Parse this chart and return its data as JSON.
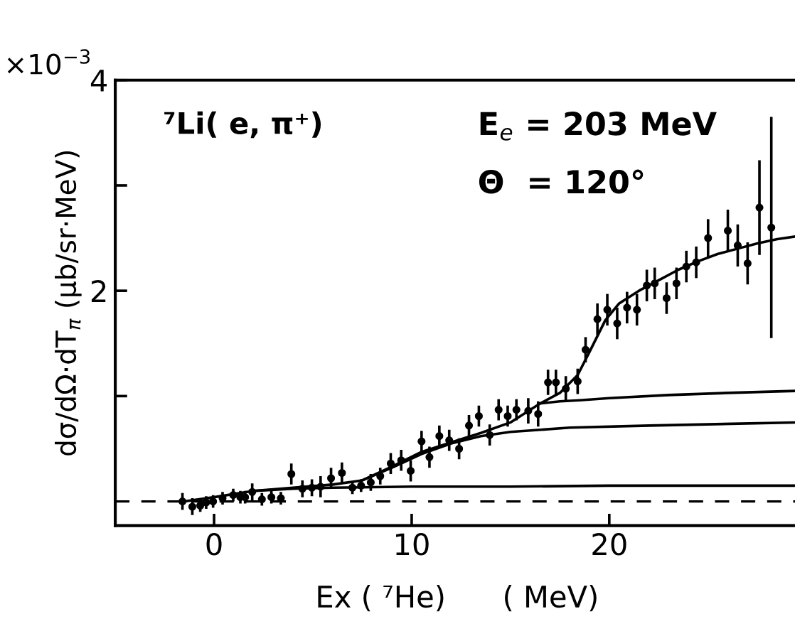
{
  "chart_data": {
    "type": "scatter",
    "xlabel": "Ex ( ⁷He)      ( MeV)",
    "ylabel": "dσ/dΩ·dT$_{π}$ (μb/sr·MeV)",
    "annotations": [
      "×10$^{−3}$",
      "⁷Li( e, π⁺)",
      "E$_{e}$ = 203 MeV",
      "Θ  = 120°"
    ],
    "xlim": [
      -5,
      29.6
    ],
    "ylim": [
      -0.23,
      4
    ],
    "xticks": [
      0,
      10,
      20
    ],
    "yticks": [
      {
        "value": 1,
        "label": null
      },
      {
        "value": 2,
        "label": "2"
      },
      {
        "value": 3,
        "label": null
      },
      {
        "value": 4,
        "label": "4"
      }
    ],
    "grid": false,
    "legend": false,
    "ref_lines": [
      {
        "axis": "y",
        "value": 0,
        "label": null,
        "color": "#000000",
        "line_style": "dashed"
      }
    ],
    "series": [
      {
        "color": "#000000",
        "marker": "circle",
        "x": [
          -1.6,
          -1.1,
          -0.7,
          -0.4,
          -0.05,
          0.43,
          0.97,
          1.33,
          1.57,
          1.93,
          2.42,
          2.9,
          3.38,
          3.91,
          4.47,
          4.95,
          5.39,
          5.92,
          6.47,
          7.0,
          7.44,
          7.93,
          8.41,
          8.94,
          9.47,
          9.95,
          10.5,
          10.9,
          11.4,
          11.9,
          12.4,
          12.9,
          13.4,
          13.95,
          14.4,
          14.86,
          15.3,
          15.9,
          16.4,
          16.9,
          17.3,
          17.8,
          18.4,
          18.8,
          19.4,
          19.9,
          20.4,
          20.9,
          21.4,
          21.9,
          22.3,
          22.9,
          23.4,
          23.9,
          24.4,
          25.0,
          26.0,
          26.5,
          27.0,
          27.6,
          28.2
        ],
        "values": [
          0.0,
          -0.05,
          -0.04,
          -0.01,
          0.0,
          0.03,
          0.06,
          0.04,
          0.04,
          0.09,
          0.02,
          0.04,
          0.03,
          0.26,
          0.12,
          0.13,
          0.14,
          0.22,
          0.27,
          0.13,
          0.15,
          0.18,
          0.24,
          0.36,
          0.39,
          0.29,
          0.57,
          0.42,
          0.62,
          0.58,
          0.5,
          0.72,
          0.81,
          0.63,
          0.87,
          0.81,
          0.87,
          0.86,
          0.83,
          1.13,
          1.13,
          1.07,
          1.14,
          1.44,
          1.73,
          1.82,
          1.69,
          1.84,
          1.82,
          2.05,
          2.07,
          1.93,
          2.07,
          2.23,
          2.27,
          2.5,
          2.57,
          2.43,
          2.26,
          2.79,
          2.6
        ],
        "errors": [
          0.08,
          0.08,
          0.06,
          0.06,
          0.06,
          0.06,
          0.06,
          0.06,
          0.06,
          0.08,
          0.06,
          0.06,
          0.06,
          0.1,
          0.08,
          0.08,
          0.1,
          0.1,
          0.1,
          0.06,
          0.06,
          0.08,
          0.08,
          0.1,
          0.1,
          0.1,
          0.1,
          0.1,
          0.1,
          0.1,
          0.1,
          0.1,
          0.1,
          0.1,
          0.1,
          0.1,
          0.1,
          0.12,
          0.12,
          0.12,
          0.12,
          0.12,
          0.12,
          0.12,
          0.15,
          0.15,
          0.15,
          0.15,
          0.15,
          0.15,
          0.15,
          0.15,
          0.15,
          0.15,
          0.15,
          0.18,
          0.2,
          0.2,
          0.2,
          0.45,
          1.05
        ]
      },
      {
        "type": "line",
        "color": "#000000",
        "line_style": "solid",
        "marker": "none",
        "x": [
          -1.5,
          0,
          2,
          4,
          6,
          7.5,
          9,
          10.5,
          12,
          13.5,
          15,
          16.5,
          17.5,
          18.4,
          19,
          19.8,
          20.5,
          21.5,
          22.5,
          23.5,
          24.5,
          25.5,
          26.5,
          27.5,
          28.5,
          29.6
        ],
        "values": [
          0.0,
          0.04,
          0.1,
          0.13,
          0.16,
          0.2,
          0.33,
          0.47,
          0.56,
          0.65,
          0.75,
          0.93,
          1.03,
          1.2,
          1.42,
          1.72,
          1.88,
          2.0,
          2.1,
          2.2,
          2.28,
          2.35,
          2.4,
          2.45,
          2.49,
          2.52
        ]
      },
      {
        "type": "line",
        "color": "#000000",
        "line_style": "solid",
        "marker": "none",
        "x": [
          2,
          4,
          6,
          10,
          15,
          20,
          29.6
        ],
        "values": [
          0.1,
          0.12,
          0.13,
          0.14,
          0.14,
          0.15,
          0.15
        ]
      },
      {
        "type": "line",
        "color": "#000000",
        "line_style": "solid",
        "marker": "none",
        "x": [
          7.5,
          9,
          10.5,
          12,
          13.5,
          15,
          18,
          22,
          29.6
        ],
        "values": [
          0.2,
          0.32,
          0.45,
          0.55,
          0.62,
          0.66,
          0.7,
          0.72,
          0.75
        ]
      },
      {
        "type": "line",
        "color": "#000000",
        "line_style": "solid",
        "marker": "none",
        "x": [
          16.5,
          17.5,
          18.5,
          20,
          23,
          26,
          29.6
        ],
        "values": [
          0.93,
          0.95,
          0.96,
          0.98,
          1.01,
          1.03,
          1.05
        ]
      }
    ]
  }
}
